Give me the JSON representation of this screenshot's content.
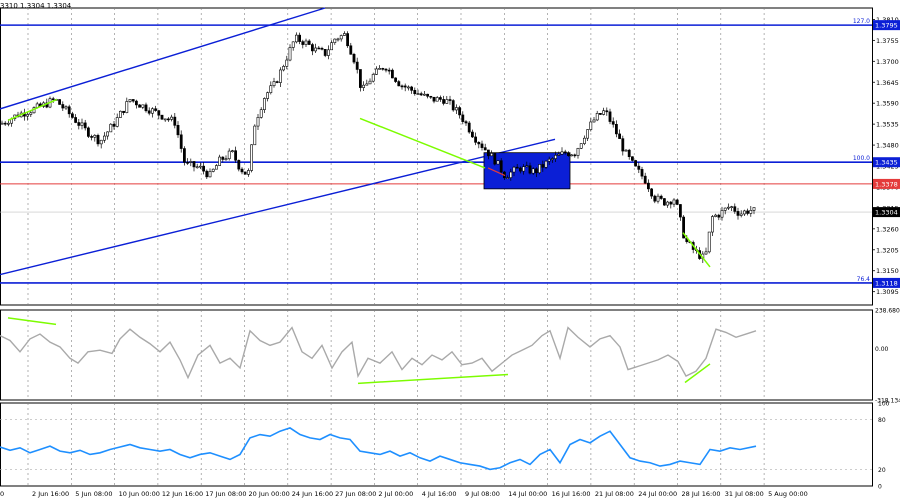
{
  "header": {
    "ohlc_text": "3310 1.3304 1.3304"
  },
  "colors": {
    "candle": "#000000",
    "blue_line": "#0b1fd6",
    "red_line": "#e43b3b",
    "green": "#7cfc00",
    "box": "#0b1fd6",
    "cci": "#a9a9a9",
    "rsi": "#1e8fff",
    "grid": "#808080"
  },
  "chart_data": [
    {
      "type": "candlestick",
      "symbol_note": "main",
      "ylim": [
        1.306,
        1.384
      ],
      "price_ticks": [
        "1.3810",
        "1.3755",
        "1.3700",
        "1.3645",
        "1.3590",
        "1.3535",
        "1.3480",
        "1.3425",
        "1.3370",
        "1.3315",
        "1.3260",
        "1.3205",
        "1.3150",
        "1.3095"
      ],
      "levels": [
        {
          "label": "127.0",
          "price_tag": "1.3795",
          "value": 1.3795,
          "style": "blue"
        },
        {
          "label": "100.0",
          "price_tag": "1.3435",
          "value": 1.3435,
          "style": "blue"
        },
        {
          "label": "",
          "price_tag": "1.3378",
          "value": 1.3378,
          "style": "red"
        },
        {
          "label": "76.4",
          "price_tag": "1.3118",
          "value": 1.3118,
          "style": "blue"
        }
      ],
      "current_price_tag": "1.3304",
      "x_labels": [
        "2 Jun 16:00",
        "5 Jun 08:00",
        "10 Jun 00:00",
        "12 Jun 16:00",
        "17 Jun 08:00",
        "20 Jun 00:00",
        "24 Jun 16:00",
        "27 Jun 08:00",
        "2 Jul 00:00",
        "4 Jul 16:00",
        "9 Jul 08:00",
        "14 Jul 00:00",
        "16 Jul 16:00",
        "21 Jul 08:00",
        "24 Jul 00:00",
        "28 Jul 16:00",
        "31 Jul 08:00",
        "5 Aug 00:00"
      ],
      "x_label_first_partial": "0",
      "path": [
        [
          0,
          1.3535
        ],
        [
          18,
          1.356
        ],
        [
          40,
          1.358
        ],
        [
          55,
          1.36
        ],
        [
          70,
          1.356
        ],
        [
          85,
          1.352
        ],
        [
          100,
          1.349
        ],
        [
          115,
          1.354
        ],
        [
          130,
          1.36
        ],
        [
          145,
          1.358
        ],
        [
          160,
          1.356
        ],
        [
          175,
          1.354
        ],
        [
          185,
          1.343
        ],
        [
          200,
          1.342
        ],
        [
          210,
          1.34
        ],
        [
          220,
          1.344
        ],
        [
          232,
          1.346
        ],
        [
          240,
          1.342
        ],
        [
          248,
          1.34
        ],
        [
          255,
          1.354
        ],
        [
          265,
          1.361
        ],
        [
          275,
          1.364
        ],
        [
          285,
          1.37
        ],
        [
          295,
          1.376
        ],
        [
          305,
          1.375
        ],
        [
          315,
          1.373
        ],
        [
          325,
          1.372
        ],
        [
          335,
          1.376
        ],
        [
          345,
          1.377
        ],
        [
          355,
          1.37
        ],
        [
          362,
          1.362
        ],
        [
          372,
          1.366
        ],
        [
          385,
          1.369
        ],
        [
          400,
          1.364
        ],
        [
          415,
          1.362
        ],
        [
          430,
          1.36
        ],
        [
          445,
          1.36
        ],
        [
          460,
          1.356
        ],
        [
          475,
          1.35
        ],
        [
          485,
          1.347
        ],
        [
          495,
          1.344
        ],
        [
          505,
          1.34
        ],
        [
          520,
          1.342
        ],
        [
          535,
          1.341
        ],
        [
          550,
          1.344
        ],
        [
          565,
          1.346
        ],
        [
          575,
          1.346
        ],
        [
          585,
          1.351
        ],
        [
          595,
          1.355
        ],
        [
          605,
          1.357
        ],
        [
          615,
          1.352
        ],
        [
          625,
          1.346
        ],
        [
          635,
          1.342
        ],
        [
          645,
          1.339
        ],
        [
          655,
          1.334
        ],
        [
          665,
          1.333
        ],
        [
          675,
          1.334
        ],
        [
          685,
          1.323
        ],
        [
          695,
          1.32
        ],
        [
          705,
          1.318
        ],
        [
          712,
          1.329
        ],
        [
          720,
          1.33
        ],
        [
          730,
          1.332
        ],
        [
          740,
          1.33
        ],
        [
          750,
          1.331
        ],
        [
          757,
          1.3304
        ]
      ],
      "drawn_lines": {
        "channel_upper": [
          [
            0,
            1.3575
          ],
          [
            325,
            1.384
          ]
        ],
        "channel_lower": [
          [
            0,
            1.314
          ],
          [
            555,
            1.3495
          ]
        ],
        "green_segments": [
          [
            [
              8,
              1.3545
            ],
            [
              57,
              1.36
            ]
          ],
          [
            [
              360,
              1.355
            ],
            [
              485,
              1.342
            ]
          ],
          [
            [
              683,
              1.325
            ],
            [
              710,
              1.316
            ]
          ]
        ],
        "red_segment": [
          [
            488,
            1.342
          ],
          [
            505,
            1.34
          ]
        ],
        "box": {
          "x0": 484,
          "x1": 570,
          "y_top": 1.346,
          "y_bottom": 1.3365
        }
      }
    },
    {
      "type": "line",
      "indicator": "cci",
      "ylim": [
        -318.134,
        238.6808
      ],
      "tick_labels": [
        "238.6808",
        "0.00",
        "-318.134"
      ],
      "path": [
        [
          0,
          80
        ],
        [
          10,
          50
        ],
        [
          20,
          -20
        ],
        [
          30,
          60
        ],
        [
          40,
          90
        ],
        [
          50,
          40
        ],
        [
          60,
          10
        ],
        [
          70,
          -60
        ],
        [
          78,
          -90
        ],
        [
          88,
          -20
        ],
        [
          100,
          -10
        ],
        [
          112,
          -30
        ],
        [
          120,
          60
        ],
        [
          130,
          120
        ],
        [
          140,
          70
        ],
        [
          150,
          30
        ],
        [
          160,
          -20
        ],
        [
          170,
          40
        ],
        [
          180,
          -70
        ],
        [
          188,
          -180
        ],
        [
          198,
          -40
        ],
        [
          210,
          20
        ],
        [
          220,
          -90
        ],
        [
          230,
          -60
        ],
        [
          240,
          -120
        ],
        [
          250,
          110
        ],
        [
          260,
          50
        ],
        [
          270,
          20
        ],
        [
          280,
          40
        ],
        [
          292,
          130
        ],
        [
          302,
          -20
        ],
        [
          312,
          -60
        ],
        [
          322,
          20
        ],
        [
          332,
          -120
        ],
        [
          342,
          -20
        ],
        [
          352,
          40
        ],
        [
          358,
          -170
        ],
        [
          368,
          -60
        ],
        [
          380,
          -90
        ],
        [
          392,
          -20
        ],
        [
          402,
          -130
        ],
        [
          412,
          -60
        ],
        [
          422,
          -100
        ],
        [
          432,
          -40
        ],
        [
          442,
          -70
        ],
        [
          452,
          -20
        ],
        [
          462,
          -100
        ],
        [
          472,
          -90
        ],
        [
          482,
          -60
        ],
        [
          492,
          -140
        ],
        [
          502,
          -90
        ],
        [
          512,
          -40
        ],
        [
          522,
          -10
        ],
        [
          532,
          20
        ],
        [
          542,
          80
        ],
        [
          550,
          110
        ],
        [
          560,
          -60
        ],
        [
          568,
          130
        ],
        [
          578,
          70
        ],
        [
          590,
          10
        ],
        [
          600,
          60
        ],
        [
          610,
          80
        ],
        [
          620,
          10
        ],
        [
          628,
          -130
        ],
        [
          638,
          -110
        ],
        [
          648,
          -90
        ],
        [
          658,
          -70
        ],
        [
          668,
          -40
        ],
        [
          678,
          -80
        ],
        [
          686,
          -170
        ],
        [
          696,
          -140
        ],
        [
          706,
          -60
        ],
        [
          716,
          120
        ],
        [
          726,
          100
        ],
        [
          736,
          70
        ],
        [
          746,
          90
        ],
        [
          756,
          110
        ]
      ],
      "green_segments": [
        [
          [
            8,
            190
          ],
          [
            56,
            150
          ]
        ],
        [
          [
            358,
            -215
          ],
          [
            508,
            -160
          ]
        ],
        [
          [
            685,
            -210
          ],
          [
            710,
            -95
          ]
        ]
      ]
    },
    {
      "type": "line",
      "indicator": "rsi",
      "ylim": [
        0,
        100
      ],
      "tick_labels": [
        "100",
        "80",
        "20",
        "0"
      ],
      "path": [
        [
          0,
          47
        ],
        [
          10,
          43
        ],
        [
          20,
          46
        ],
        [
          30,
          40
        ],
        [
          40,
          44
        ],
        [
          50,
          48
        ],
        [
          60,
          42
        ],
        [
          70,
          40
        ],
        [
          80,
          43
        ],
        [
          90,
          38
        ],
        [
          100,
          40
        ],
        [
          110,
          44
        ],
        [
          120,
          47
        ],
        [
          130,
          50
        ],
        [
          140,
          46
        ],
        [
          150,
          44
        ],
        [
          160,
          42
        ],
        [
          170,
          44
        ],
        [
          180,
          38
        ],
        [
          190,
          34
        ],
        [
          200,
          38
        ],
        [
          210,
          40
        ],
        [
          220,
          36
        ],
        [
          230,
          32
        ],
        [
          240,
          38
        ],
        [
          250,
          58
        ],
        [
          260,
          62
        ],
        [
          270,
          60
        ],
        [
          280,
          66
        ],
        [
          290,
          70
        ],
        [
          300,
          62
        ],
        [
          310,
          58
        ],
        [
          320,
          56
        ],
        [
          330,
          62
        ],
        [
          340,
          58
        ],
        [
          350,
          56
        ],
        [
          360,
          42
        ],
        [
          370,
          40
        ],
        [
          380,
          38
        ],
        [
          390,
          42
        ],
        [
          400,
          36
        ],
        [
          410,
          40
        ],
        [
          420,
          34
        ],
        [
          430,
          30
        ],
        [
          440,
          36
        ],
        [
          450,
          32
        ],
        [
          460,
          28
        ],
        [
          470,
          26
        ],
        [
          480,
          24
        ],
        [
          490,
          20
        ],
        [
          500,
          22
        ],
        [
          510,
          28
        ],
        [
          520,
          32
        ],
        [
          530,
          26
        ],
        [
          540,
          38
        ],
        [
          550,
          44
        ],
        [
          560,
          28
        ],
        [
          570,
          50
        ],
        [
          580,
          56
        ],
        [
          590,
          52
        ],
        [
          600,
          60
        ],
        [
          610,
          66
        ],
        [
          620,
          50
        ],
        [
          630,
          34
        ],
        [
          640,
          30
        ],
        [
          650,
          28
        ],
        [
          660,
          24
        ],
        [
          670,
          26
        ],
        [
          680,
          30
        ],
        [
          690,
          28
        ],
        [
          700,
          26
        ],
        [
          710,
          44
        ],
        [
          720,
          42
        ],
        [
          730,
          46
        ],
        [
          740,
          44
        ],
        [
          756,
          48
        ]
      ]
    }
  ]
}
